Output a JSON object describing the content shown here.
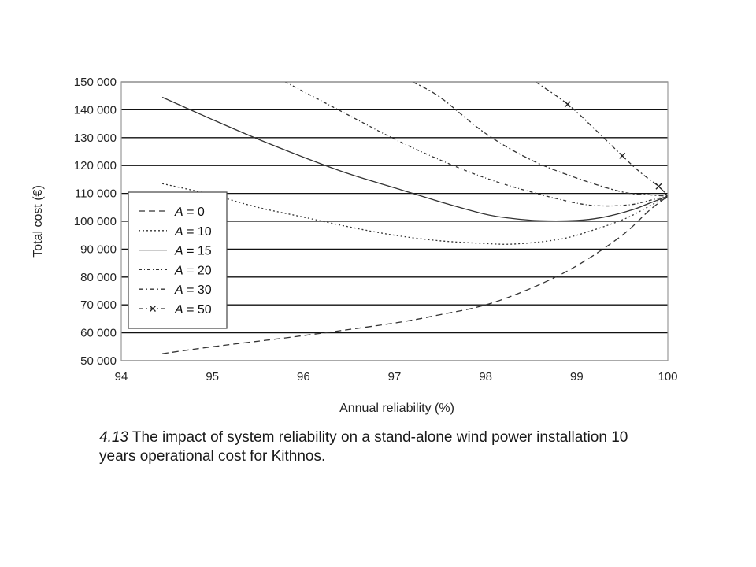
{
  "chart_data": {
    "type": "line",
    "title": "",
    "xlabel": "Annual reliability (%)",
    "ylabel": "Total cost (€)",
    "xlim": [
      94,
      100
    ],
    "ylim": [
      50000,
      150000
    ],
    "x_ticks": [
      94,
      95,
      96,
      97,
      98,
      99,
      100
    ],
    "y_ticks": [
      50000,
      60000,
      70000,
      80000,
      90000,
      100000,
      110000,
      120000,
      130000,
      140000,
      150000
    ],
    "x_tick_labels": [
      "94",
      "95",
      "96",
      "97",
      "98",
      "99",
      "100"
    ],
    "y_tick_labels": [
      "50 000",
      "60 000",
      "70 000",
      "80 000",
      "90 000",
      "100 000",
      "110 000",
      "120 000",
      "130 000",
      "140 000",
      "150 000"
    ],
    "grid": "horizontal",
    "legend_position": "left",
    "series": [
      {
        "name": "A = 0",
        "var": "A",
        "value_label": "= 0",
        "dash": "8,5",
        "marker": "none",
        "points": [
          [
            94.45,
            52500
          ],
          [
            95.0,
            55000
          ],
          [
            96.0,
            59000
          ],
          [
            97.0,
            63500
          ],
          [
            97.5,
            66500
          ],
          [
            98.0,
            70000
          ],
          [
            98.5,
            76000
          ],
          [
            99.0,
            84000
          ],
          [
            99.5,
            95000
          ],
          [
            99.8,
            104000
          ],
          [
            100.0,
            109000
          ]
        ]
      },
      {
        "name": "A = 10",
        "var": "A",
        "value_label": "= 10",
        "dash": "2,3",
        "marker": "none",
        "points": [
          [
            94.45,
            113500
          ],
          [
            95.0,
            109500
          ],
          [
            95.5,
            105000
          ],
          [
            96.0,
            101500
          ],
          [
            96.5,
            98000
          ],
          [
            97.0,
            95000
          ],
          [
            97.5,
            93000
          ],
          [
            98.0,
            92000
          ],
          [
            98.3,
            91800
          ],
          [
            98.7,
            93000
          ],
          [
            99.0,
            95000
          ],
          [
            99.5,
            100500
          ],
          [
            99.8,
            105500
          ],
          [
            100.0,
            109000
          ]
        ]
      },
      {
        "name": "A = 15",
        "var": "A",
        "value_label": "= 15",
        "dash": "",
        "marker": "none",
        "points": [
          [
            94.45,
            144500
          ],
          [
            95.0,
            136500
          ],
          [
            95.5,
            129500
          ],
          [
            96.0,
            123000
          ],
          [
            96.5,
            117000
          ],
          [
            97.0,
            112000
          ],
          [
            97.5,
            107000
          ],
          [
            98.0,
            102500
          ],
          [
            98.3,
            101000
          ],
          [
            98.6,
            100200
          ],
          [
            99.0,
            100300
          ],
          [
            99.3,
            101500
          ],
          [
            99.6,
            104000
          ],
          [
            99.8,
            106500
          ],
          [
            100.0,
            109000
          ]
        ]
      },
      {
        "name": "A = 20",
        "var": "A",
        "value_label": "= 20",
        "dash": "4,3,1,3",
        "marker": "none",
        "points": [
          [
            95.8,
            150000
          ],
          [
            96.5,
            138000
          ],
          [
            97.0,
            129500
          ],
          [
            97.5,
            122000
          ],
          [
            98.0,
            115500
          ],
          [
            98.5,
            110500
          ],
          [
            99.0,
            106500
          ],
          [
            99.3,
            105500
          ],
          [
            99.6,
            106000
          ],
          [
            99.8,
            107500
          ],
          [
            100.0,
            109000
          ]
        ]
      },
      {
        "name": "A = 30",
        "var": "A",
        "value_label": "= 30",
        "dash": "6,3,2,3",
        "marker": "none",
        "points": [
          [
            97.2,
            150000
          ],
          [
            97.5,
            144500
          ],
          [
            98.0,
            131500
          ],
          [
            98.5,
            122000
          ],
          [
            99.0,
            115500
          ],
          [
            99.5,
            110500
          ],
          [
            99.8,
            109500
          ],
          [
            100.0,
            109000
          ]
        ]
      },
      {
        "name": "A = 50",
        "var": "A",
        "value_label": "= 50",
        "dash": "6,3,2,3",
        "marker": "x",
        "marker_points": [
          [
            98.9,
            142000
          ],
          [
            99.5,
            123500
          ],
          [
            99.9,
            112500
          ],
          [
            100.0,
            109000
          ]
        ],
        "points": [
          [
            98.55,
            150000
          ],
          [
            98.9,
            142000
          ],
          [
            99.2,
            133000
          ],
          [
            99.5,
            123500
          ],
          [
            99.7,
            117500
          ],
          [
            99.9,
            112500
          ],
          [
            100.0,
            109000
          ]
        ]
      }
    ]
  },
  "caption": {
    "number": "4.13",
    "text": "The impact of system reliability on a stand-alone wind power installation 10 years operational cost for Kithnos."
  }
}
